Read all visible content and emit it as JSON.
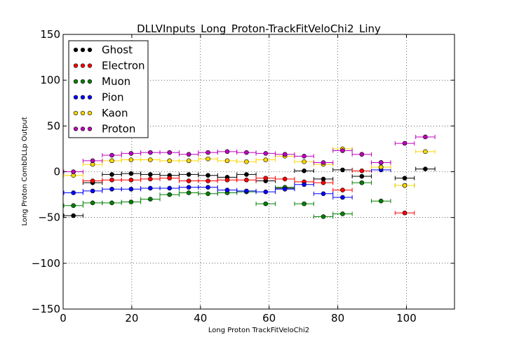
{
  "chart_data": {
    "type": "scatter",
    "title": "DLLVInputs_Long_Proton-TrackFitVeloChi2_Liny",
    "xlabel": "Long Proton TrackFitVeloChi2",
    "ylabel": "Long Proton CombDLLp Output",
    "xlim": [
      0,
      114
    ],
    "ylim": [
      -150,
      150
    ],
    "xticks": [
      "0",
      "20",
      "40",
      "60",
      "80",
      "100"
    ],
    "yticks": [
      "150",
      "100",
      "50",
      "0",
      "−50",
      "−100",
      "−150"
    ],
    "grid": true,
    "legend_position": "top-left",
    "bin_half_width": 2.8,
    "series": [
      {
        "name": "Ghost",
        "color": "#000000",
        "x": [
          3,
          8.6,
          14.2,
          19.8,
          25.4,
          31,
          36.6,
          42.2,
          47.8,
          53.4,
          59,
          64.6,
          70.2,
          75.8,
          81.4,
          87,
          92.6,
          99.5,
          105.5
        ],
        "y": [
          -48,
          -12,
          -3,
          -2,
          -3,
          -4,
          -3,
          -4,
          -6,
          -3,
          -10,
          -18,
          1,
          -8,
          2,
          -5,
          10,
          -7,
          3
        ]
      },
      {
        "name": "Electron",
        "color": "#ff0000",
        "x": [
          8.6,
          14.2,
          19.8,
          25.4,
          31,
          36.6,
          42.2,
          47.8,
          53.4,
          59,
          64.6,
          70.2,
          75.8,
          81.4,
          87,
          92.6,
          99.5
        ],
        "y": [
          -10,
          -9,
          -9,
          -8,
          -7,
          -10,
          -10,
          -9,
          -9,
          -7,
          -8,
          -11,
          -12,
          -20,
          1,
          5,
          -45
        ]
      },
      {
        "name": "Muon",
        "color": "#008000",
        "x": [
          3,
          8.6,
          14.2,
          19.8,
          25.4,
          31,
          36.6,
          42.2,
          47.8,
          53.4,
          59,
          64.6,
          70.2,
          75.8,
          81.4,
          87,
          92.6,
          99.5
        ],
        "y": [
          -37,
          -34,
          -34,
          -33,
          -30,
          -25,
          -23,
          -24,
          -23,
          -22,
          -35,
          -17,
          -35,
          -49,
          -46,
          -12,
          -32,
          -15
        ]
      },
      {
        "name": "Pion",
        "color": "#0000ff",
        "x": [
          3,
          8.6,
          14.2,
          19.8,
          25.4,
          31,
          36.6,
          42.2,
          47.8,
          53.4,
          59,
          64.6,
          70.2,
          75.8,
          81.4,
          92.6
        ],
        "y": [
          -23,
          -21,
          -19,
          -19,
          -18,
          -18,
          -17,
          -17,
          -20,
          -21,
          -22,
          -19,
          -14,
          -24,
          -28,
          2
        ]
      },
      {
        "name": "Kaon",
        "color": "#ffd700",
        "x": [
          3,
          8.6,
          14.2,
          19.8,
          25.4,
          31,
          36.6,
          42.2,
          47.8,
          53.4,
          59,
          64.6,
          70.2,
          75.8,
          81.4,
          92.6,
          99.5,
          105.5
        ],
        "y": [
          -4,
          8,
          12,
          13,
          13,
          12,
          12,
          14,
          12,
          11,
          13,
          17,
          11,
          8,
          25,
          5,
          -15,
          22
        ]
      },
      {
        "name": "Proton",
        "color": "#bf00bf",
        "x": [
          3,
          8.6,
          14.2,
          19.8,
          25.4,
          31,
          36.6,
          42.2,
          47.8,
          53.4,
          59,
          64.6,
          70.2,
          75.8,
          81.4,
          87,
          92.6,
          99.5,
          105.5
        ],
        "y": [
          0,
          12,
          18,
          20,
          21,
          21,
          19,
          21,
          22,
          21,
          20,
          19,
          17,
          10,
          23,
          19,
          10,
          31,
          38
        ]
      }
    ]
  }
}
